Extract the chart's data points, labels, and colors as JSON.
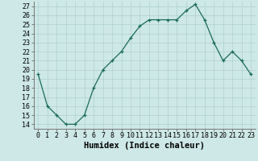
{
  "x": [
    0,
    1,
    2,
    3,
    4,
    5,
    6,
    7,
    8,
    9,
    10,
    11,
    12,
    13,
    14,
    15,
    16,
    17,
    18,
    19,
    20,
    21,
    22,
    23
  ],
  "y": [
    19.5,
    16.0,
    15.0,
    14.0,
    14.0,
    15.0,
    18.0,
    20.0,
    21.0,
    22.0,
    23.5,
    24.8,
    25.5,
    25.5,
    25.5,
    25.5,
    26.5,
    27.2,
    25.5,
    23.0,
    21.0,
    22.0,
    21.0,
    19.5
  ],
  "xlabel": "Humidex (Indice chaleur)",
  "xlim": [
    -0.5,
    23.5
  ],
  "ylim": [
    13.5,
    27.5
  ],
  "yticks": [
    14,
    15,
    16,
    17,
    18,
    19,
    20,
    21,
    22,
    23,
    24,
    25,
    26,
    27
  ],
  "xticks": [
    0,
    1,
    2,
    3,
    4,
    5,
    6,
    7,
    8,
    9,
    10,
    11,
    12,
    13,
    14,
    15,
    16,
    17,
    18,
    19,
    20,
    21,
    22,
    23
  ],
  "line_color": "#1a6b5a",
  "marker": "+",
  "bg_color": "#cde8e6",
  "grid_color": "#b0d0ce",
  "label_fontsize": 7.5,
  "tick_fontsize": 6.0
}
